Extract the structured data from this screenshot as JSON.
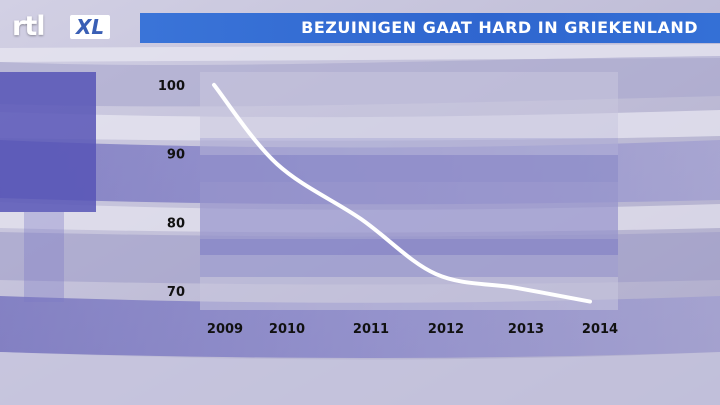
{
  "brand": {
    "logo_text": "rtl",
    "logo_badge": "XL"
  },
  "header": {
    "title": "BEZUINIGEN GAAT HARD IN GRIEKENLAND"
  },
  "colors": {
    "title_bar": "#3470d6",
    "plot_bg": "#c6c4dc",
    "line": "#ffffff",
    "flag_blue": "#5b59b8"
  },
  "chart_data": {
    "type": "line",
    "title": "",
    "xlabel": "",
    "ylabel": "",
    "categories": [
      "2009",
      "2010",
      "2011",
      "2012",
      "2013",
      "2014"
    ],
    "series": [
      {
        "name": "",
        "values": [
          100,
          88.5,
          80.5,
          72.5,
          70.5,
          68.5
        ]
      }
    ],
    "yticks": [
      70,
      80,
      90,
      100
    ],
    "ylim": [
      68,
      101
    ],
    "grid": false,
    "legend": "none"
  }
}
